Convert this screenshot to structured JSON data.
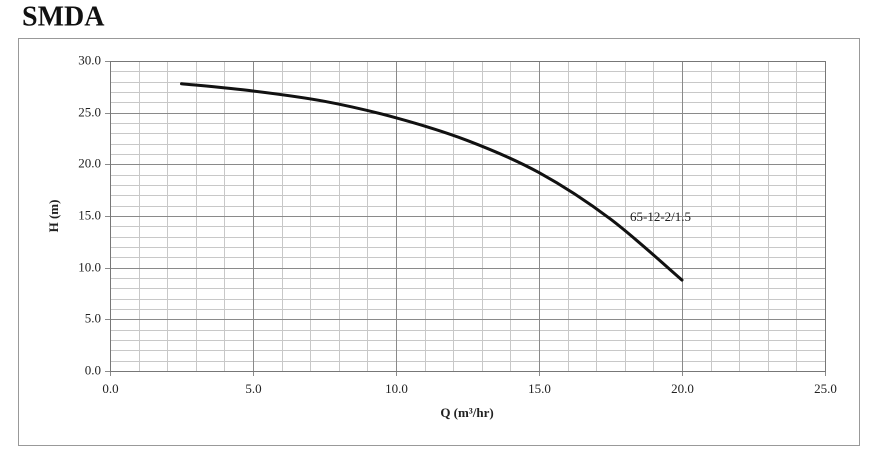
{
  "chart_data": {
    "type": "line",
    "title": "SMDA",
    "xlabel": "Q (m³/hr)",
    "ylabel": "H (m)",
    "x": [
      2.5,
      5,
      7.5,
      10,
      12.5,
      15,
      17.5,
      20
    ],
    "series": [
      {
        "name": "65-12-2/1.5",
        "color": "#111111",
        "values": [
          27.8,
          27.1,
          26.1,
          24.5,
          22.3,
          19.2,
          14.7,
          8.8
        ]
      }
    ],
    "xlim": [
      0,
      25
    ],
    "ylim": [
      0,
      30
    ],
    "xticks": [
      {
        "value": 0,
        "label": "0.0"
      },
      {
        "value": 5,
        "label": "5.0"
      },
      {
        "value": 10,
        "label": "10.0"
      },
      {
        "value": 15,
        "label": "15.0"
      },
      {
        "value": 20,
        "label": "20.0"
      },
      {
        "value": 25,
        "label": "25.0"
      }
    ],
    "yticks": [
      {
        "value": 0,
        "label": "0.0"
      },
      {
        "value": 5,
        "label": "5.0"
      },
      {
        "value": 10,
        "label": "10.0"
      },
      {
        "value": 15,
        "label": "15.0"
      },
      {
        "value": 20,
        "label": "20.0"
      },
      {
        "value": 25,
        "label": "25.0"
      },
      {
        "value": 30,
        "label": "30.0"
      }
    ],
    "minor_xticks": [
      1,
      2,
      3,
      4,
      6,
      7,
      8,
      9,
      11,
      12,
      13,
      14,
      16,
      17,
      18,
      19,
      21,
      22,
      23,
      24
    ],
    "minor_yticks": [
      1,
      2,
      3,
      4,
      6,
      7,
      8,
      9,
      11,
      12,
      13,
      14,
      16,
      17,
      18,
      19,
      21,
      22,
      23,
      24,
      26,
      27,
      28,
      29
    ],
    "grid": true
  }
}
